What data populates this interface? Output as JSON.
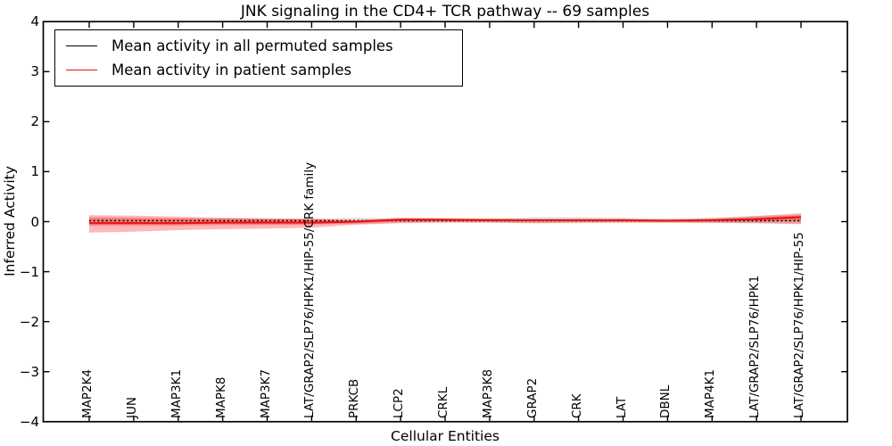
{
  "figure": {
    "background": "#ffffff"
  },
  "legend": {
    "position": "upper left",
    "entries": [
      {
        "label": "Mean activity in all permuted samples",
        "color": "#000000"
      },
      {
        "label": "Mean activity in patient samples",
        "color": "#ee1111"
      }
    ]
  },
  "chart_data": {
    "type": "line",
    "title": "JNK signaling in the CD4+ TCR pathway -- 69 samples",
    "xlabel": "Cellular Entities",
    "ylabel": "Inferred Activity",
    "ylim": [
      -4,
      4
    ],
    "yticks": [
      4,
      3,
      2,
      1,
      0,
      -1,
      -2,
      -3,
      -4
    ],
    "grid": false,
    "legend_position": "upper left",
    "categories": [
      "MAP2K4",
      "JUN",
      "MAP3K1",
      "MAPK8",
      "MAP3K7",
      "LAT/GRAP2/SLP76/HPK1/HIP-55/CRK family",
      "PRKCB",
      "LCP2",
      "CRKL",
      "MAP3K8",
      "GRAP2",
      "CRK",
      "LAT",
      "DBNL",
      "MAP4K1",
      "LAT/GRAP2/SLP76/HPK1",
      "LAT/GRAP2/SLP76/HPK1/HIP-55"
    ],
    "series": [
      {
        "name": "Mean activity in all permuted samples",
        "color": "#000000",
        "style": "dotted",
        "values": [
          0.02,
          0.02,
          0.02,
          0.02,
          0.02,
          0.02,
          0.02,
          0.02,
          0.02,
          0.02,
          0.02,
          0.02,
          0.02,
          0.02,
          0.02,
          0.02,
          0.02
        ]
      },
      {
        "name": "Mean activity in patient samples",
        "color": "#ee1111",
        "style": "solid",
        "values": [
          -0.03,
          -0.03,
          -0.03,
          -0.02,
          -0.02,
          -0.02,
          0.0,
          0.04,
          0.04,
          0.03,
          0.03,
          0.03,
          0.03,
          0.02,
          0.03,
          0.05,
          0.09
        ]
      }
    ],
    "bands": [
      {
        "name": "permuted-samples-std",
        "color": "#000000",
        "opacity": 0.12,
        "upper": [
          0.07,
          0.06,
          0.06,
          0.06,
          0.06,
          0.06,
          0.08,
          0.06,
          0.05,
          0.06,
          0.09,
          0.09,
          0.08,
          0.07,
          0.08,
          0.12,
          0.14
        ],
        "lower": [
          -0.04,
          -0.03,
          -0.03,
          -0.03,
          -0.03,
          -0.04,
          -0.05,
          -0.02,
          -0.01,
          -0.02,
          -0.03,
          -0.03,
          -0.02,
          -0.02,
          -0.03,
          -0.03,
          -0.04
        ]
      },
      {
        "name": "patient-samples-outer",
        "color": "#ff0000",
        "opacity": 0.28,
        "upper": [
          0.13,
          0.12,
          0.1,
          0.08,
          0.07,
          0.06,
          0.03,
          0.08,
          0.07,
          0.06,
          0.05,
          0.05,
          0.04,
          0.04,
          0.06,
          0.11,
          0.17
        ],
        "lower": [
          -0.22,
          -0.2,
          -0.17,
          -0.15,
          -0.14,
          -0.12,
          -0.06,
          -0.03,
          -0.02,
          -0.02,
          -0.03,
          -0.02,
          -0.02,
          -0.02,
          -0.02,
          -0.03,
          -0.05
        ]
      },
      {
        "name": "patient-samples-inner",
        "color": "#ff0000",
        "opacity": 0.25,
        "upper": [
          0.09,
          0.08,
          0.07,
          0.06,
          0.05,
          0.04,
          0.02,
          0.06,
          0.06,
          0.05,
          0.04,
          0.04,
          0.04,
          0.03,
          0.05,
          0.08,
          0.13
        ],
        "lower": [
          -0.08,
          -0.08,
          -0.08,
          -0.07,
          -0.07,
          -0.06,
          -0.03,
          0.01,
          0.01,
          0.01,
          0.01,
          0.01,
          0.01,
          0.0,
          0.0,
          0.0,
          0.01
        ]
      }
    ]
  }
}
